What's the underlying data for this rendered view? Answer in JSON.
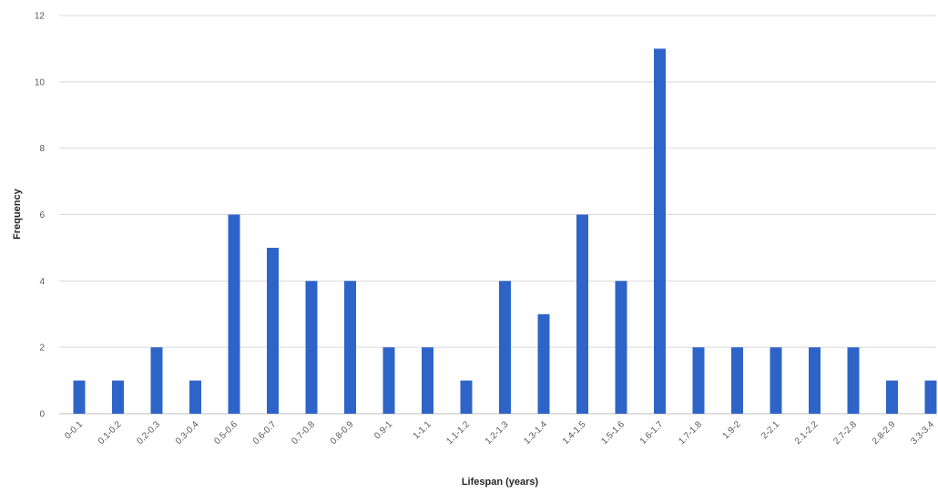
{
  "chart_data": {
    "type": "bar",
    "xlabel": "Lifespan (years)",
    "ylabel": "Frequency",
    "ylim": [
      0,
      12
    ],
    "yticks": [
      0,
      2,
      4,
      6,
      8,
      10,
      12
    ],
    "grid": true,
    "legend": "none",
    "bar_color": "#2E64C8",
    "categories": [
      "0-0.1",
      "0.1-0.2",
      "0.2-0.3",
      "0.3-0.4",
      "0.5-0.6",
      "0.6-0.7",
      "0.7-0.8",
      "0.8-0.9",
      "0.9-1",
      "1-1.1",
      "1.1-1.2",
      "1.2-1.3",
      "1.3-1.4",
      "1.4-1.5",
      "1.5-1.6",
      "1.6-1.7",
      "1.7-1.8",
      "1.9-2",
      "2-2.1",
      "2.1-2.2",
      "2.7-2.8",
      "2.8-2.9",
      "3.3-3.4"
    ],
    "values": [
      1,
      1,
      2,
      1,
      6,
      5,
      4,
      4,
      2,
      2,
      1,
      4,
      3,
      6,
      4,
      11,
      2,
      2,
      2,
      2,
      2,
      1,
      1
    ]
  }
}
